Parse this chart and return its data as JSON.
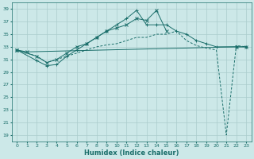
{
  "xlabel": "Humidex (Indice chaleur)",
  "bg_color": "#cce8e8",
  "grid_color": "#aacccc",
  "line_color": "#1a6e6a",
  "xlim": [
    -0.5,
    23.5
  ],
  "ylim": [
    18,
    40
  ],
  "yticks": [
    19,
    21,
    23,
    25,
    27,
    29,
    31,
    33,
    35,
    37,
    39
  ],
  "xticks": [
    0,
    1,
    2,
    3,
    4,
    5,
    6,
    7,
    8,
    9,
    10,
    11,
    12,
    13,
    14,
    15,
    16,
    17,
    18,
    19,
    20,
    21,
    22,
    23
  ],
  "series1_x": [
    0,
    1,
    22,
    23
  ],
  "series1_y": [
    32.5,
    32.2,
    33.0,
    33.0
  ],
  "series2_x": [
    0,
    2,
    3,
    4,
    5,
    6,
    7,
    8,
    9,
    10,
    11,
    12,
    13,
    14,
    15,
    16,
    17,
    18,
    19,
    20,
    22,
    23
  ],
  "series2_y": [
    32.5,
    30.8,
    30.0,
    30.2,
    31.5,
    32.5,
    33.5,
    34.5,
    35.5,
    36.5,
    37.5,
    38.8,
    36.5,
    36.5,
    36.5,
    35.5,
    35.0,
    34.0,
    33.5,
    33.0,
    33.0,
    33.0
  ],
  "series3_x": [
    0,
    2,
    3,
    4,
    5,
    6,
    7,
    8,
    9,
    10,
    11,
    12,
    13,
    14,
    15
  ],
  "series3_y": [
    32.5,
    31.5,
    30.5,
    31.0,
    32.0,
    33.0,
    33.5,
    34.5,
    35.5,
    36.0,
    36.5,
    37.5,
    37.2,
    38.8,
    35.5
  ],
  "series4_x": [
    0,
    2,
    3,
    4,
    5,
    6,
    7,
    8,
    9,
    10,
    11,
    12,
    13,
    14,
    15,
    16,
    17,
    18,
    19,
    20,
    21,
    22,
    23
  ],
  "series4_y": [
    32.5,
    31.5,
    30.5,
    31.0,
    31.5,
    32.0,
    32.5,
    33.0,
    33.3,
    33.5,
    34.0,
    34.5,
    34.5,
    35.0,
    35.0,
    35.5,
    34.0,
    33.2,
    32.8,
    32.5,
    19.0,
    33.2,
    33.0
  ]
}
